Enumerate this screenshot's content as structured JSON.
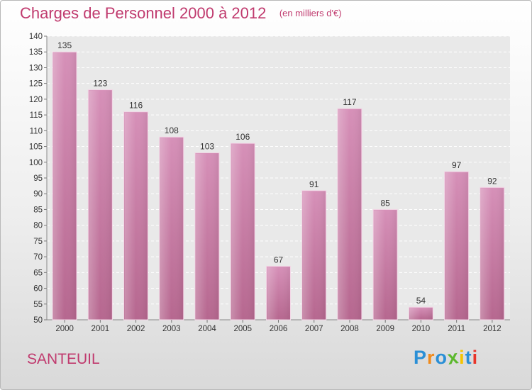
{
  "chart_data": {
    "type": "bar",
    "title": "Charges de Personnel 2000 à 2012",
    "subtitle": "(en milliers d'€)",
    "categories": [
      "2000",
      "2001",
      "2002",
      "2003",
      "2004",
      "2005",
      "2006",
      "2007",
      "2008",
      "2009",
      "2010",
      "2011",
      "2012"
    ],
    "values": [
      135,
      123,
      116,
      108,
      103,
      106,
      67,
      91,
      117,
      85,
      54,
      97,
      92
    ],
    "ylim": [
      50,
      140
    ],
    "yticks": [
      50,
      55,
      60,
      65,
      70,
      75,
      80,
      85,
      90,
      95,
      100,
      105,
      110,
      115,
      120,
      125,
      130,
      135,
      140
    ],
    "grid": true,
    "colors": {
      "bar": "#d690b8",
      "bar_dark": "#b6678f",
      "accent": "#c03a6e"
    }
  },
  "city": "SANTEUIL",
  "logo": {
    "letters": [
      "P",
      "r",
      "o",
      "x",
      "i",
      "t",
      "i"
    ],
    "colors": [
      "#2a8fd6",
      "#f08a1c",
      "#2a8fd6",
      "#5cb82e",
      "#f5c400",
      "#2a8fd6",
      "#e8342a"
    ]
  }
}
